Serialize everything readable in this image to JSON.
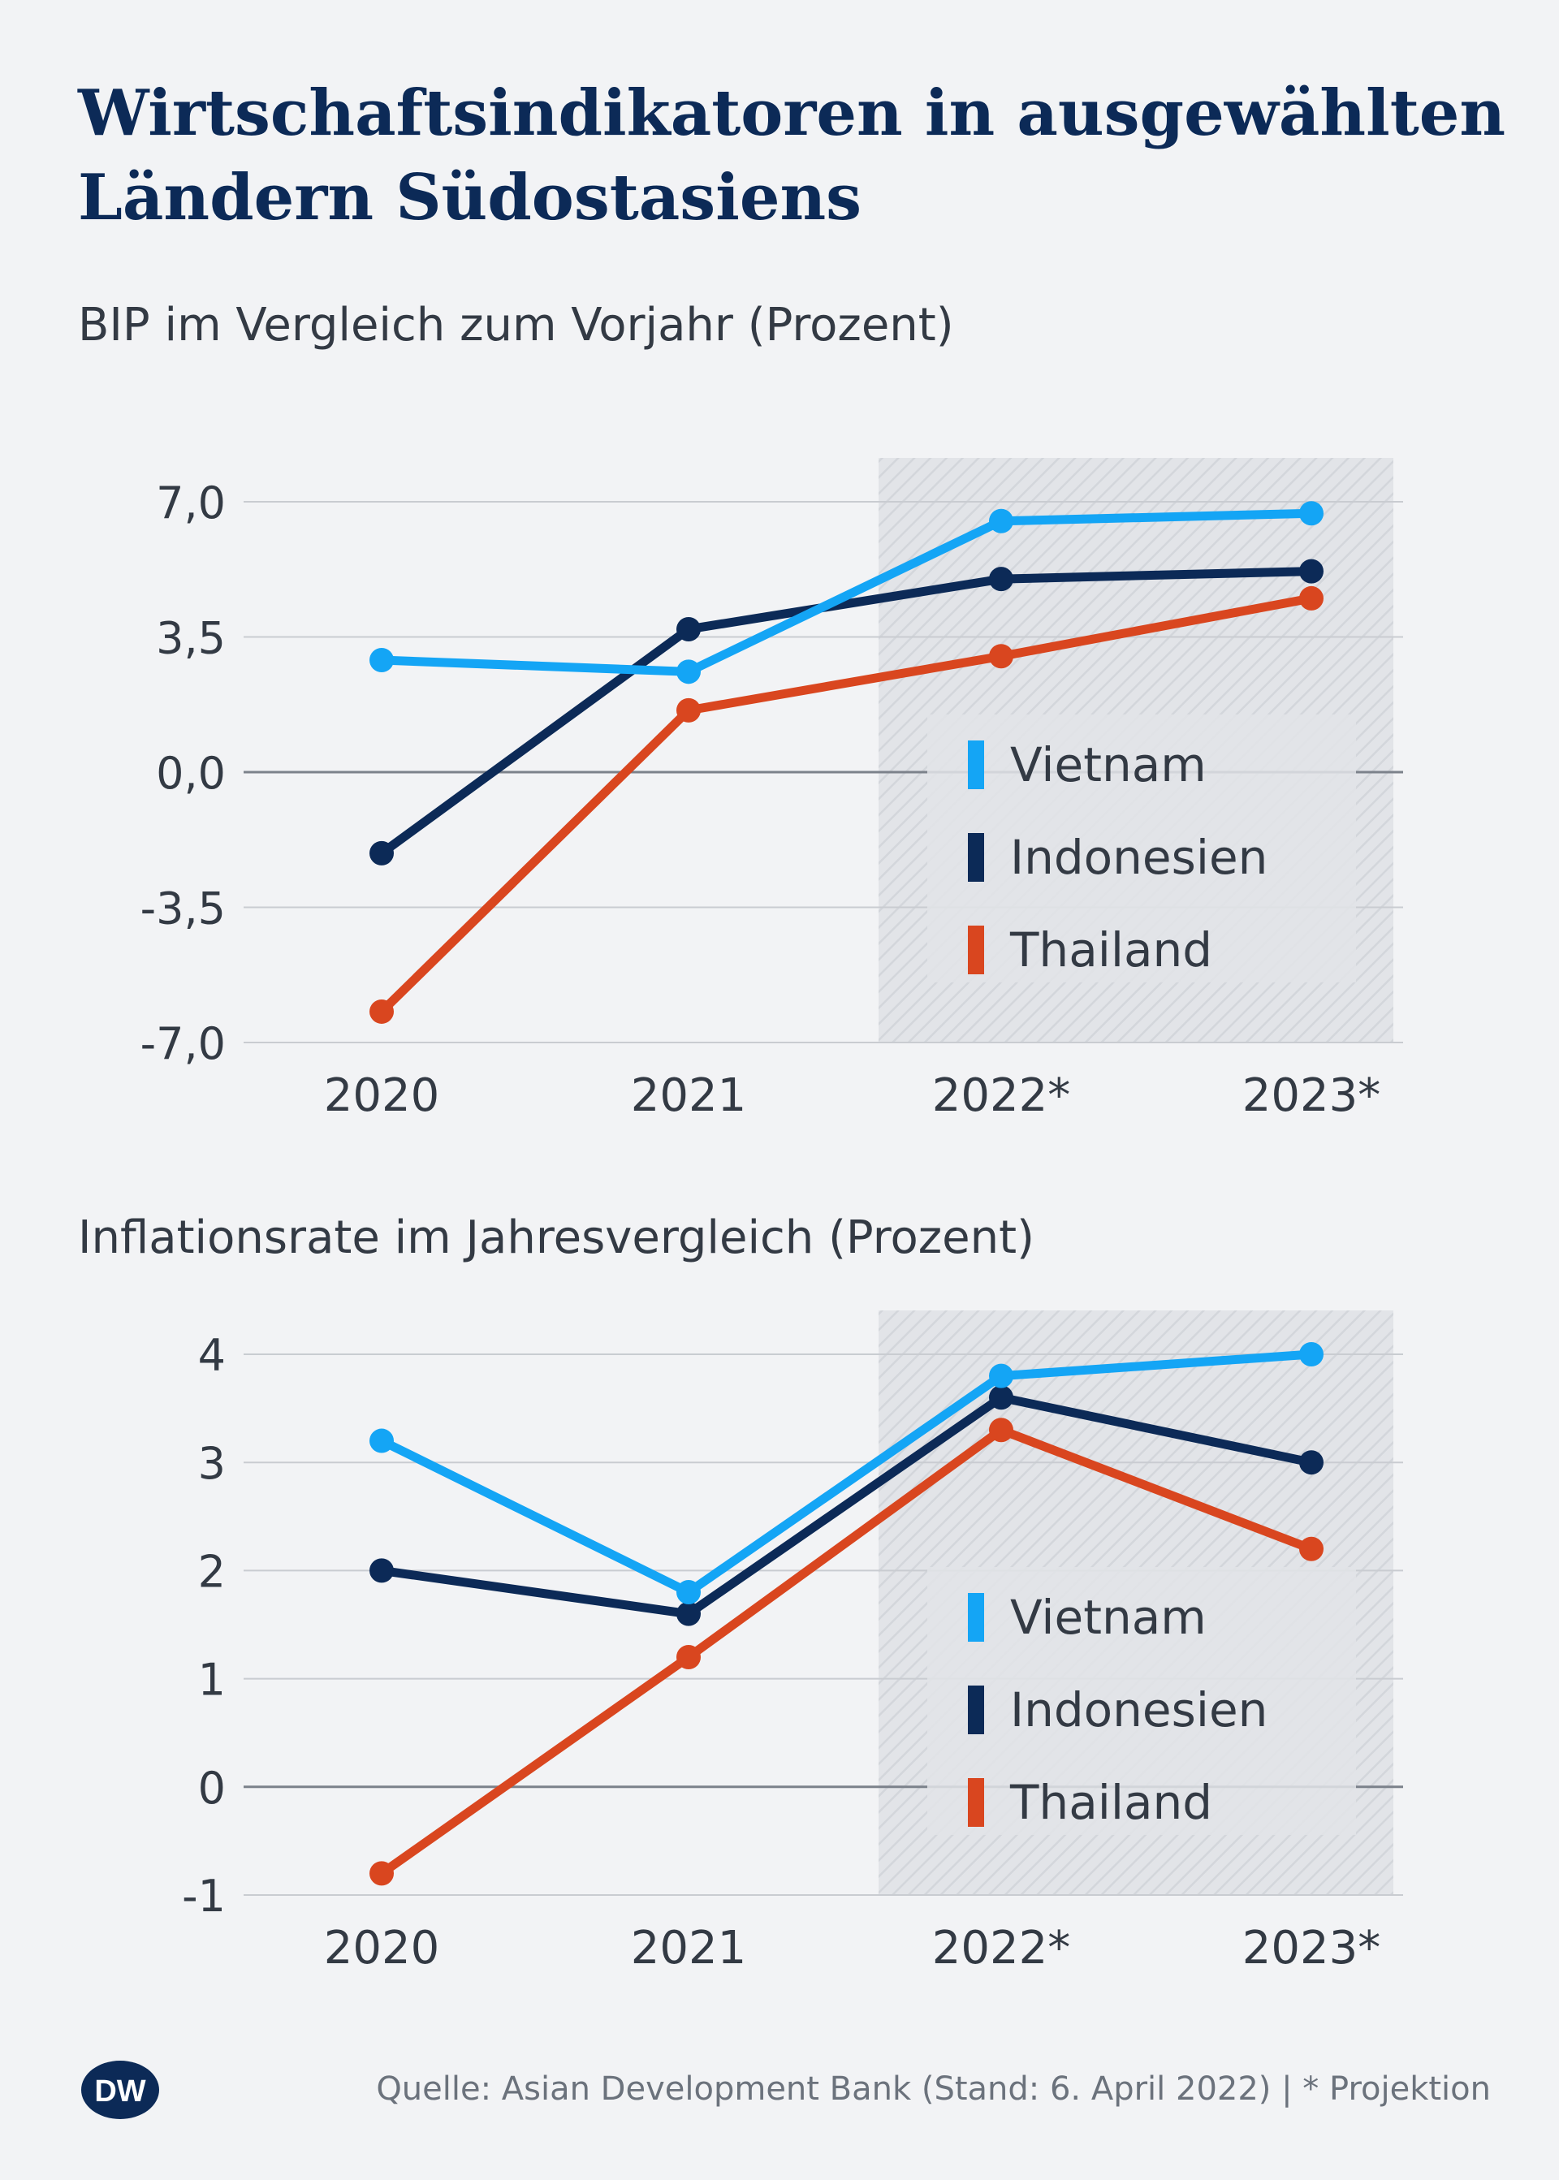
{
  "title": "Wirtschaftsindikatoren in ausgewählten Ländern Südostasiens",
  "colors": {
    "Vietnam": "#14a5f5",
    "Indonesien": "#0c2a57",
    "Thailand": "#d9461f",
    "projection_shade": "#e2e4e8",
    "gridline": "#c9ccd1",
    "zero_line": "#7c828b",
    "text": "#333a44"
  },
  "charts": [
    {
      "subtitle": "BIP im Vergleich zum Vorjahr (Prozent)",
      "chart_data": {
        "type": "line",
        "title": "BIP im Vergleich zum Vorjahr (Prozent)",
        "categories": [
          "2020",
          "2021",
          "2022*",
          "2023*"
        ],
        "ylim": [
          -7,
          7
        ],
        "yticks": [
          7,
          3.5,
          0,
          -3.5,
          -7
        ],
        "ytick_labels": [
          "7,0",
          "3,5",
          "0,0",
          "-3,5",
          "-7,0"
        ],
        "projection_from_index": 2,
        "series": [
          {
            "name": "Vietnam",
            "values": [
              2.9,
              2.6,
              6.5,
              6.7
            ]
          },
          {
            "name": "Indonesien",
            "values": [
              -2.1,
              3.7,
              5.0,
              5.2
            ]
          },
          {
            "name": "Thailand",
            "values": [
              -6.2,
              1.6,
              3.0,
              4.5
            ]
          }
        ],
        "legend_position": "bottom-right"
      }
    },
    {
      "subtitle": "Inflationsrate im Jahresvergleich (Prozent)",
      "chart_data": {
        "type": "line",
        "title": "Inflationsrate im Jahresvergleich (Prozent)",
        "categories": [
          "2020",
          "2021",
          "2022*",
          "2023*"
        ],
        "ylim": [
          -1,
          4
        ],
        "yticks": [
          4,
          3,
          2,
          1,
          0,
          -1
        ],
        "ytick_labels": [
          "4",
          "3",
          "2",
          "1",
          "0",
          "-1"
        ],
        "projection_from_index": 2,
        "series": [
          {
            "name": "Vietnam",
            "values": [
              3.2,
              1.8,
              3.8,
              4.0
            ]
          },
          {
            "name": "Indonesien",
            "values": [
              2.0,
              1.6,
              3.6,
              3.0
            ]
          },
          {
            "name": "Thailand",
            "values": [
              -0.8,
              1.2,
              3.3,
              2.2
            ]
          }
        ],
        "legend_position": "bottom-right"
      }
    }
  ],
  "footer": {
    "logo_text": "DW",
    "source": "Quelle: Asian Development Bank (Stand: 6. April 2022) | * Projektion"
  }
}
